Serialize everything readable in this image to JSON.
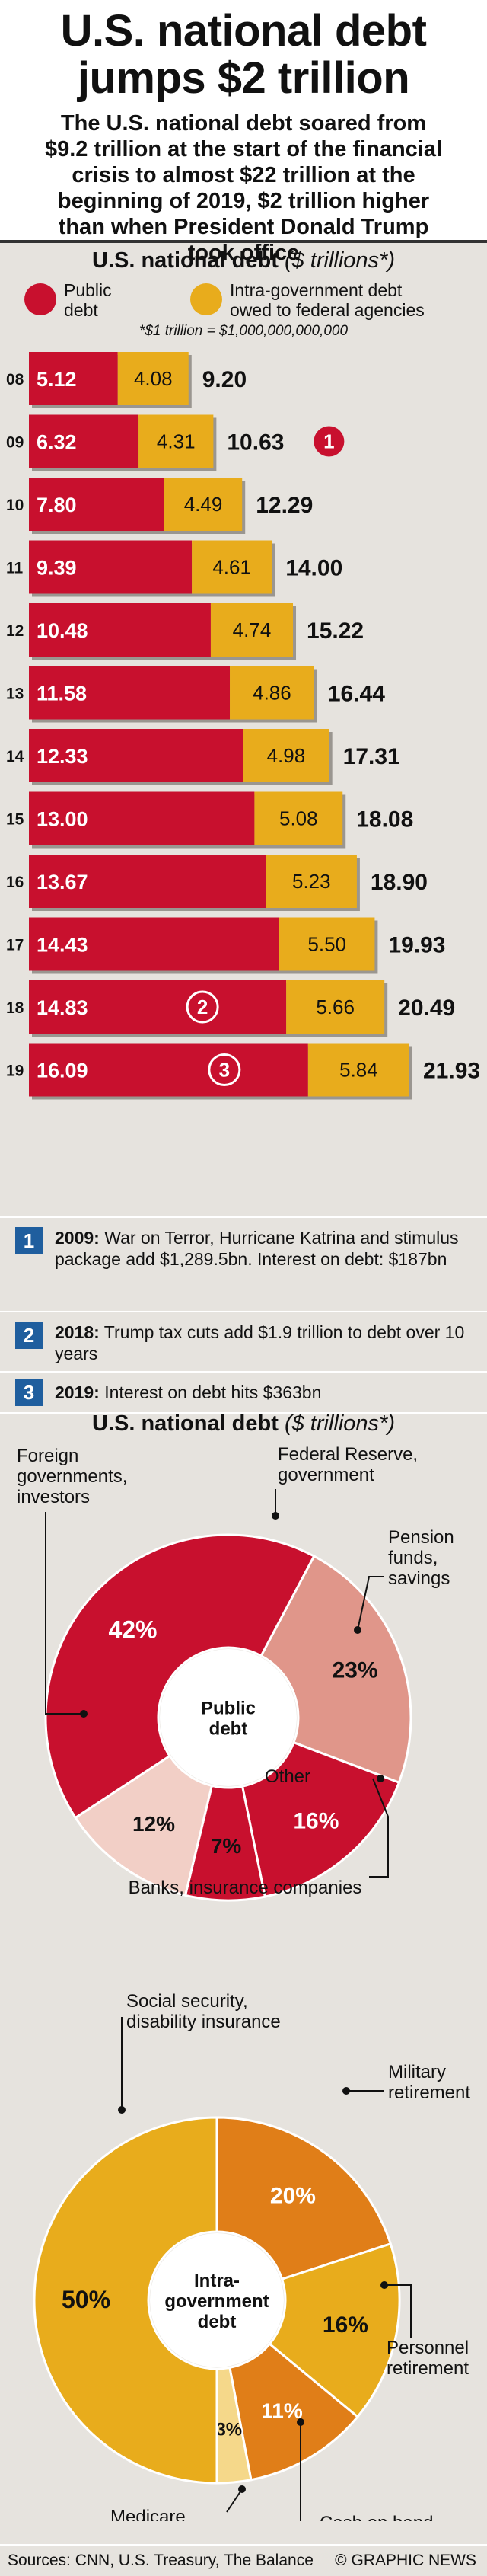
{
  "header": {
    "title_line1": "U.S. national debt",
    "title_line2": "jumps $2 trillion",
    "subtitle_lines": [
      "The U.S. national debt soared from",
      "$9.2 trillion at the start of the financial",
      "crisis to almost $22 trillion at the",
      "beginning of 2019, $2 trillion  higher",
      "than when President Donald Trump",
      "took office"
    ]
  },
  "bar_section": {
    "title": "U.S. national debt",
    "unit": "($ trillions*)",
    "legend_public": [
      "Public",
      "debt"
    ],
    "legend_intra": [
      "Intra-government debt",
      "owed to federal agencies"
    ],
    "footnote": "*$1 trillion = $1,000,000,000,000"
  },
  "colors": {
    "public": "#c8102e",
    "intra": "#e8ac1c",
    "note_box": "#1f5e9e",
    "salmon": "#e0968a",
    "light_pink": "#f2cfc6",
    "orange": "#e07e18",
    "pale_yellow": "#f5d88a"
  },
  "chart_data": [
    {
      "type": "bar",
      "stacked": true,
      "orientation": "horizontal",
      "categories": [
        "08",
        "09",
        "10",
        "11",
        "12",
        "13",
        "14",
        "15",
        "16",
        "17",
        "18",
        "19"
      ],
      "series": [
        {
          "name": "Public debt",
          "values": [
            5.12,
            6.32,
            7.8,
            9.39,
            10.48,
            11.58,
            12.33,
            13.0,
            13.67,
            14.43,
            14.83,
            16.09
          ]
        },
        {
          "name": "Intra-government debt owed to federal agencies",
          "values": [
            4.08,
            4.31,
            4.49,
            4.61,
            4.74,
            4.86,
            4.98,
            5.08,
            5.23,
            5.5,
            5.66,
            5.84
          ]
        }
      ],
      "value_labels": {
        "public": [
          "5.12",
          "6.32",
          "7.80",
          "9.39",
          "10.48",
          "11.58",
          "12.33",
          "13.00",
          "13.67",
          "14.43",
          "14.83",
          "16.09"
        ],
        "intra": [
          "4.08",
          "4.31",
          "4.49",
          "4.61",
          "4.74",
          "4.86",
          "4.98",
          "5.08",
          "5.23",
          "5.50",
          "5.66",
          "5.84"
        ]
      },
      "totals": [
        "9.20",
        "10.63",
        "12.29",
        "14.00",
        "15.22",
        "16.44",
        "17.31",
        "18.08",
        "18.90",
        "19.93",
        "20.49",
        "21.93"
      ],
      "markers": [
        {
          "label": "1",
          "category": "09",
          "style": "after-total"
        },
        {
          "label": "2",
          "category": "18",
          "style": "in-bar"
        },
        {
          "label": "3",
          "category": "19",
          "style": "in-bar"
        }
      ]
    },
    {
      "type": "pie",
      "donut": true,
      "center_label": [
        "Public",
        "debt"
      ],
      "title": "U.S. national debt",
      "unit": "($ trillions*)",
      "slices": [
        {
          "label": "Federal Reserve, government",
          "value": 23,
          "text": "23%"
        },
        {
          "label": "Pension funds, savings",
          "value": 16,
          "text": "16%"
        },
        {
          "label": "Banks, insurance companies",
          "value": 7,
          "text": "7%"
        },
        {
          "label": "Other",
          "value": 12,
          "text": "12%"
        },
        {
          "label": "Foreign governments, investors",
          "value": 42,
          "text": "42%"
        }
      ]
    },
    {
      "type": "pie",
      "donut": true,
      "center_label": [
        "Intra-",
        "government",
        "debt"
      ],
      "slices": [
        {
          "label": "Military retirement",
          "value": 20,
          "text": "20%"
        },
        {
          "label": "Personnel retirement",
          "value": 16,
          "text": "16%"
        },
        {
          "label": "Cash on hand",
          "value": 11,
          "text": "11%"
        },
        {
          "label": "Medicare",
          "value": 3,
          "text": "3%"
        },
        {
          "label": "Social security, disability insurance",
          "value": 50,
          "text": "50%"
        }
      ]
    }
  ],
  "notes": [
    {
      "num": "1",
      "year": "2009:",
      "text": " War on Terror, Hurricane Katrina and stimulus package add $1,289.5bn. Interest on debt: $187bn"
    },
    {
      "num": "2",
      "year": "2018:",
      "text": " Trump tax cuts add $1.9 trillion to debt over 10 years"
    },
    {
      "num": "3",
      "year": "2019:",
      "text": " Interest on debt hits $363bn"
    }
  ],
  "donut_labels": {
    "public": {
      "foreign": [
        "Foreign",
        "governments,",
        "investors"
      ],
      "fed": [
        "Federal Reserve,",
        "government"
      ],
      "pension": [
        "Pension",
        "funds,",
        "savings"
      ],
      "banks": "Banks, insurance companies",
      "other": "Other"
    },
    "intra": {
      "social": [
        "Social security,",
        "disability insurance"
      ],
      "military": [
        "Military",
        "retirement"
      ],
      "personnel": [
        "Personnel",
        "retirement"
      ],
      "cash": "Cash on hand",
      "medicare": "Medicare"
    }
  },
  "footer": {
    "sources": "Sources: CNN, U.S. Treasury, The Balance",
    "credit": "© GRAPHIC NEWS"
  }
}
